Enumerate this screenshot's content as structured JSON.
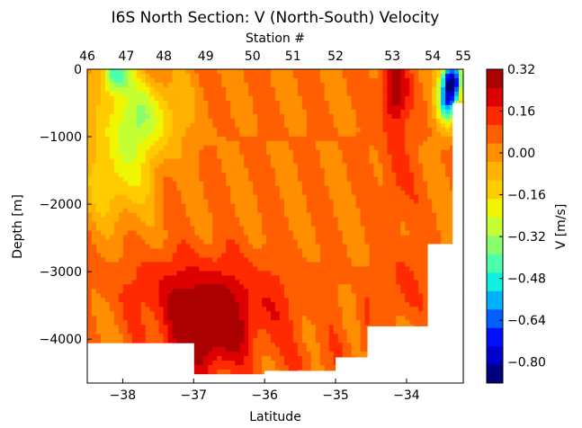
{
  "chart_data": {
    "type": "heatmap",
    "title": "I6S North Section: V (North-South) Velocity",
    "xlabel": "Latitude",
    "x2label": "Station #",
    "ylabel": "Depth [m]",
    "colorbar_label": "V [m/s]",
    "xlim": [
      -38.5,
      -33.2
    ],
    "ylim": [
      -4650,
      0
    ],
    "x_ticks": [
      -38,
      -37,
      -36,
      -35,
      -34
    ],
    "x_tick_labels": [
      "−38",
      "−37",
      "−36",
      "−35",
      "−34"
    ],
    "y_ticks": [
      0,
      -1000,
      -2000,
      -3000,
      -4000
    ],
    "y_tick_labels": [
      "0",
      "−1000",
      "−2000",
      "−3000",
      "−4000"
    ],
    "stations": [
      {
        "label": "46",
        "lat": -38.5
      },
      {
        "label": "47",
        "lat": -37.95
      },
      {
        "label": "48",
        "lat": -37.42
      },
      {
        "label": "49",
        "lat": -36.83
      },
      {
        "label": "50",
        "lat": -36.17
      },
      {
        "label": "51",
        "lat": -35.6
      },
      {
        "label": "52",
        "lat": -35.0
      },
      {
        "label": "53",
        "lat": -34.2
      },
      {
        "label": "54",
        "lat": -33.63
      },
      {
        "label": "55",
        "lat": -33.2
      }
    ],
    "colorbar": {
      "vmin": -0.88,
      "vmax": 0.32,
      "tick_values": [
        0.32,
        0.16,
        0.0,
        -0.16,
        -0.32,
        -0.48,
        -0.64,
        -0.8
      ],
      "tick_labels": [
        "0.32",
        "0.16",
        "0.00",
        "−0.16",
        "−0.32",
        "−0.48",
        "−0.64",
        "−0.80"
      ],
      "levels": [
        "#00007f",
        "#0000cc",
        "#0010ff",
        "#0060ff",
        "#00b0ff",
        "#10f0e0",
        "#4dffaa",
        "#8aff6d",
        "#c4ff33",
        "#f0f500",
        "#ffcc00",
        "#ffb300",
        "#ff8f00",
        "#ff5f00",
        "#ff2a00",
        "#dd0000",
        "#aa0000"
      ]
    },
    "seafloor_mask": [
      {
        "lat_from": -38.5,
        "lat_to": -37.5,
        "depth": -4060
      },
      {
        "lat_from": -37.5,
        "lat_to": -37.0,
        "depth": -4060
      },
      {
        "lat_from": -37.0,
        "lat_to": -36.0,
        "depth": -4520
      },
      {
        "lat_from": -36.0,
        "lat_to": -35.0,
        "depth": -4470
      },
      {
        "lat_from": -35.0,
        "lat_to": -34.55,
        "depth": -4270
      },
      {
        "lat_from": -34.55,
        "lat_to": -33.7,
        "depth": -3810
      },
      {
        "lat_from": -33.7,
        "lat_to": -33.35,
        "depth": -2590
      },
      {
        "lat_from": -33.35,
        "lat_to": -33.2,
        "depth": -500
      }
    ],
    "features": [
      {
        "kind": "peak",
        "lat": -36.9,
        "depth": -3950,
        "value": 0.3,
        "rx": 0.55,
        "ry": 600
      },
      {
        "kind": "peak",
        "lat": -36.4,
        "depth": -3500,
        "value": 0.18,
        "rx": 0.9,
        "ry": 700
      },
      {
        "kind": "peak",
        "lat": -37.3,
        "depth": -3200,
        "value": 0.14,
        "rx": 0.8,
        "ry": 500
      },
      {
        "kind": "peak",
        "lat": -34.18,
        "depth": -300,
        "value": 0.3,
        "rx": 0.18,
        "ry": 500
      },
      {
        "kind": "peak",
        "lat": -34.15,
        "depth": -1500,
        "value": 0.13,
        "rx": 0.2,
        "ry": 1000
      },
      {
        "kind": "peak",
        "lat": -34.0,
        "depth": -3200,
        "value": 0.13,
        "rx": 0.25,
        "ry": 600
      },
      {
        "kind": "peak",
        "lat": -34.6,
        "depth": -3800,
        "value": 0.12,
        "rx": 0.1,
        "ry": 600
      },
      {
        "kind": "peak",
        "lat": -35.3,
        "depth": -4300,
        "value": 0.08,
        "rx": 0.45,
        "ry": 300
      },
      {
        "kind": "trough",
        "lat": -38.1,
        "depth": -50,
        "value": -0.42,
        "rx": 0.2,
        "ry": 300
      },
      {
        "kind": "trough",
        "lat": -37.75,
        "depth": -700,
        "value": -0.28,
        "rx": 0.55,
        "ry": 600
      },
      {
        "kind": "trough",
        "lat": -38.05,
        "depth": -1600,
        "value": -0.18,
        "rx": 0.45,
        "ry": 700
      },
      {
        "kind": "trough",
        "lat": -33.35,
        "depth": -150,
        "value": -0.75,
        "rx": 0.14,
        "ry": 300
      },
      {
        "kind": "trough",
        "lat": -33.42,
        "depth": -500,
        "value": -0.5,
        "rx": 0.15,
        "ry": 350
      }
    ],
    "background_value": 0.04
  }
}
